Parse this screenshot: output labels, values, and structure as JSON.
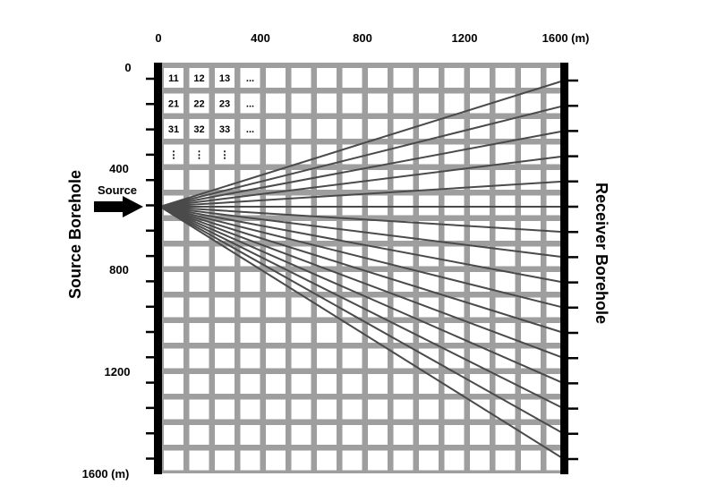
{
  "top_axis": {
    "ticks": [
      "0",
      "400",
      "800",
      "1200",
      "1600 (m)"
    ]
  },
  "left_axis": {
    "ticks": [
      "0",
      "400",
      "800",
      "1200",
      "1600 (m)"
    ]
  },
  "source_label": "Source",
  "source_borehole_label": "Source Borehole",
  "receiver_borehole_label": "Receiver Borehole",
  "cell_labels": [
    [
      "11",
      "12",
      "13",
      "..."
    ],
    [
      "21",
      "22",
      "23",
      "..."
    ],
    [
      "31",
      "32",
      "33",
      "..."
    ],
    [
      "⋮",
      "⋮",
      "⋮"
    ]
  ],
  "colors": {
    "grid": "#9e9e9e",
    "cell": "#ffffff",
    "ray": "#4a4a4a",
    "borehole": "#000000"
  }
}
